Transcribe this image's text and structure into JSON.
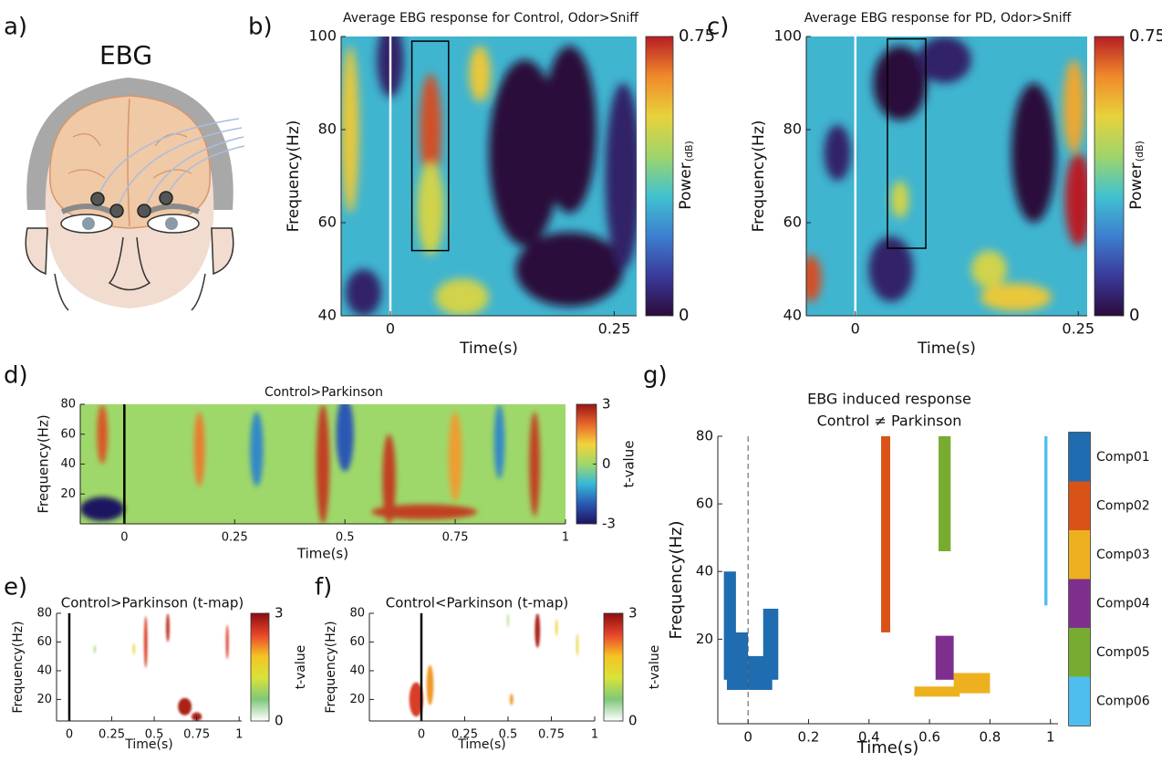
{
  "illustration": {
    "panel": "a)",
    "title": "EBG"
  },
  "chart_data": [
    {
      "type": "heatmap",
      "panel": "b)",
      "title": "Average EBG response for Control, Odor>Sniff",
      "x_label": "Time(s)",
      "y_label": "Frequency(Hz)",
      "xlim": [
        -0.055,
        0.275
      ],
      "xticks": [
        0,
        0.25
      ],
      "ylim": [
        40,
        100
      ],
      "yticks": [
        40,
        60,
        80,
        100
      ],
      "event_line": {
        "x": 0,
        "color": "#ffffff",
        "dashed": false
      },
      "roi": {
        "x": [
          0.024,
          0.065
        ],
        "y": [
          54,
          99
        ]
      },
      "colorbar": {
        "label": "Power",
        "unit": "(dB)",
        "lim": [
          0,
          0.75
        ],
        "ticks": [
          0,
          0.75
        ]
      },
      "colormap": [
        "#2a0b3b",
        "#3a3a9a",
        "#3d7fd0",
        "#41c2d0",
        "#9fd46a",
        "#e8d23c",
        "#f08a2a",
        "#b71d26"
      ],
      "base_value": 0.3,
      "blobs": [
        {
          "x": 0.045,
          "y": 80,
          "rx": 0.012,
          "ry": 12,
          "value": 0.7
        },
        {
          "x": 0.045,
          "y": 63,
          "rx": 0.015,
          "ry": 10,
          "value": 0.5
        },
        {
          "x": -0.045,
          "y": 80,
          "rx": 0.01,
          "ry": 18,
          "value": 0.55
        },
        {
          "x": 0.15,
          "y": 75,
          "rx": 0.04,
          "ry": 20,
          "value": 0
        },
        {
          "x": 0.2,
          "y": 80,
          "rx": 0.03,
          "ry": 18,
          "value": 0
        },
        {
          "x": 0.2,
          "y": 50,
          "rx": 0.06,
          "ry": 8,
          "value": 0
        },
        {
          "x": 0.0,
          "y": 95,
          "rx": 0.015,
          "ry": 8,
          "value": 0.05
        },
        {
          "x": -0.03,
          "y": 45,
          "rx": 0.02,
          "ry": 5,
          "value": 0.05
        },
        {
          "x": 0.08,
          "y": 44,
          "rx": 0.03,
          "ry": 4,
          "value": 0.5
        },
        {
          "x": 0.26,
          "y": 70,
          "rx": 0.02,
          "ry": 20,
          "value": 0.05
        },
        {
          "x": 0.1,
          "y": 92,
          "rx": 0.012,
          "ry": 6,
          "value": 0.55
        }
      ]
    },
    {
      "type": "heatmap",
      "panel": "c)",
      "title": "Average EBG response for PD, Odor>Sniff",
      "x_label": "Time(s)",
      "y_label": "Frequency(Hz)",
      "xlim": [
        -0.055,
        0.26
      ],
      "xticks": [
        0,
        0.25
      ],
      "ylim": [
        40,
        100
      ],
      "yticks": [
        40,
        60,
        80,
        100
      ],
      "event_line": {
        "x": 0,
        "color": "#ffffff",
        "dashed": false
      },
      "roi": {
        "x": [
          0.036,
          0.079
        ],
        "y": [
          54.5,
          99.5
        ]
      },
      "colorbar": {
        "label": "Power",
        "unit": "(dB)",
        "lim": [
          0,
          0.75
        ],
        "ticks": [
          0,
          0.75
        ]
      },
      "colormap": [
        "#2a0b3b",
        "#3a3a9a",
        "#3d7fd0",
        "#41c2d0",
        "#9fd46a",
        "#e8d23c",
        "#f08a2a",
        "#b71d26"
      ],
      "base_value": 0.3,
      "blobs": [
        {
          "x": 0.25,
          "y": 65,
          "rx": 0.015,
          "ry": 10,
          "value": 0.75
        },
        {
          "x": 0.245,
          "y": 85,
          "rx": 0.012,
          "ry": 10,
          "value": 0.6
        },
        {
          "x": -0.05,
          "y": 48,
          "rx": 0.012,
          "ry": 5,
          "value": 0.7
        },
        {
          "x": 0.2,
          "y": 75,
          "rx": 0.025,
          "ry": 15,
          "value": 0
        },
        {
          "x": 0.05,
          "y": 90,
          "rx": 0.03,
          "ry": 8,
          "value": 0
        },
        {
          "x": 0.04,
          "y": 50,
          "rx": 0.025,
          "ry": 7,
          "value": 0.05
        },
        {
          "x": -0.02,
          "y": 75,
          "rx": 0.015,
          "ry": 6,
          "value": 0.05
        },
        {
          "x": 0.15,
          "y": 50,
          "rx": 0.02,
          "ry": 4,
          "value": 0.5
        },
        {
          "x": 0.18,
          "y": 44,
          "rx": 0.04,
          "ry": 3,
          "value": 0.55
        },
        {
          "x": 0.1,
          "y": 95,
          "rx": 0.03,
          "ry": 5,
          "value": 0.05
        },
        {
          "x": 0.05,
          "y": 65,
          "rx": 0.01,
          "ry": 4,
          "value": 0.5
        }
      ]
    },
    {
      "type": "heatmap",
      "panel": "d)",
      "title": "Control>Parkinson",
      "x_label": "Time(s)",
      "y_label": "Frequency(Hz)",
      "xlim": [
        -0.1,
        1
      ],
      "xticks": [
        0,
        0.25,
        0.5,
        0.75,
        1
      ],
      "ylim": [
        0,
        80
      ],
      "yticks": [
        20,
        40,
        60,
        80
      ],
      "event_line": {
        "x": 0,
        "color": "#000000",
        "dashed": false
      },
      "colorbar": {
        "label": "t-value",
        "lim": [
          -3,
          3
        ],
        "ticks": [
          -3,
          0,
          3
        ]
      },
      "colormap": [
        "#1e1360",
        "#2a58b4",
        "#36b8d8",
        "#9fd86a",
        "#f3d23a",
        "#e8672b",
        "#9a1616"
      ],
      "base_value": 0,
      "blobs": [
        {
          "x": 0.45,
          "y": 40,
          "rx": 0.015,
          "ry": 40,
          "value": 2.5
        },
        {
          "x": 0.6,
          "y": 30,
          "rx": 0.015,
          "ry": 30,
          "value": 2.5
        },
        {
          "x": 0.68,
          "y": 8,
          "rx": 0.12,
          "ry": 5,
          "value": 2.5
        },
        {
          "x": -0.05,
          "y": 10,
          "rx": 0.05,
          "ry": 8,
          "value": -3
        },
        {
          "x": 0.5,
          "y": 60,
          "rx": 0.02,
          "ry": 25,
          "value": -2
        },
        {
          "x": 0.93,
          "y": 40,
          "rx": 0.012,
          "ry": 35,
          "value": 2.5
        },
        {
          "x": -0.05,
          "y": 60,
          "rx": 0.012,
          "ry": 20,
          "value": 2.2
        },
        {
          "x": 0.3,
          "y": 50,
          "rx": 0.015,
          "ry": 25,
          "value": -1.5
        },
        {
          "x": 0.75,
          "y": 45,
          "rx": 0.015,
          "ry": 30,
          "value": 1.5
        },
        {
          "x": 0.85,
          "y": 55,
          "rx": 0.012,
          "ry": 25,
          "value": -1.5
        },
        {
          "x": 0.17,
          "y": 50,
          "rx": 0.012,
          "ry": 25,
          "value": 1.8
        }
      ]
    },
    {
      "type": "heatmap",
      "panel": "e)",
      "title": "Control>Parkinson (t-map)",
      "x_label": "Time(s)",
      "y_label": "Frequency(Hz)",
      "xlim": [
        -0.075,
        1.015
      ],
      "xticks": [
        0,
        0.25,
        0.5,
        0.75,
        1
      ],
      "ylim": [
        5,
        80
      ],
      "yticks": [
        20,
        40,
        60,
        80
      ],
      "event_line": {
        "x": 0,
        "color": "#000000",
        "dashed": false
      },
      "colorbar": {
        "label": "t-value",
        "lim": [
          0,
          3
        ],
        "ticks": [
          0,
          3
        ]
      },
      "colormap": [
        "#ffffff",
        "#80c87a",
        "#d8e33a",
        "#f6c325",
        "#e8452b",
        "#8b0e10"
      ],
      "base_value": 0,
      "blobs": [
        {
          "x": 0.45,
          "y": 60,
          "rx": 0.01,
          "ry": 18,
          "value": 2.5
        },
        {
          "x": 0.58,
          "y": 70,
          "rx": 0.01,
          "ry": 10,
          "value": 2.7
        },
        {
          "x": 0.68,
          "y": 15,
          "rx": 0.04,
          "ry": 6,
          "value": 2.8
        },
        {
          "x": 0.75,
          "y": 8,
          "rx": 0.03,
          "ry": 3,
          "value": 2.8
        },
        {
          "x": 0.93,
          "y": 60,
          "rx": 0.008,
          "ry": 12,
          "value": 2.5
        },
        {
          "x": 0.15,
          "y": 55,
          "rx": 0.005,
          "ry": 3,
          "value": 0.8
        },
        {
          "x": 0.38,
          "y": 55,
          "rx": 0.006,
          "ry": 4,
          "value": 1.6
        }
      ]
    },
    {
      "type": "heatmap",
      "panel": "f)",
      "title": "Control<Parkinson (t-map)",
      "x_label": "Time(s)",
      "y_label": "Frequency(Hz)",
      "xlim": [
        -0.3,
        1
      ],
      "xticks": [
        0,
        0.25,
        0.5,
        0.75,
        1
      ],
      "ylim": [
        5,
        80
      ],
      "yticks": [
        20,
        40,
        60,
        80
      ],
      "event_line": {
        "x": 0,
        "color": "#000000",
        "dashed": false
      },
      "colorbar": {
        "label": "t-value",
        "lim": [
          0,
          3
        ],
        "ticks": [
          0,
          3
        ]
      },
      "colormap": [
        "#ffffff",
        "#80c87a",
        "#d8e33a",
        "#f6c325",
        "#e8452b",
        "#8b0e10"
      ],
      "base_value": 0,
      "blobs": [
        {
          "x": 0.67,
          "y": 68,
          "rx": 0.015,
          "ry": 12,
          "value": 2.8
        },
        {
          "x": -0.03,
          "y": 20,
          "rx": 0.04,
          "ry": 12,
          "value": 2.5
        },
        {
          "x": 0.05,
          "y": 30,
          "rx": 0.02,
          "ry": 14,
          "value": 2
        },
        {
          "x": 0.52,
          "y": 20,
          "rx": 0.01,
          "ry": 4,
          "value": 2
        },
        {
          "x": 0.5,
          "y": 75,
          "rx": 0.004,
          "ry": 5,
          "value": 0.8
        },
        {
          "x": 0.78,
          "y": 70,
          "rx": 0.006,
          "ry": 6,
          "value": 1.6
        },
        {
          "x": 0.9,
          "y": 58,
          "rx": 0.006,
          "ry": 8,
          "value": 1.5
        }
      ]
    },
    {
      "type": "regions",
      "panel": "g)",
      "title": "EBG induced response",
      "subtitle": "Control ≠ Parkinson",
      "x_label": "Time(s)",
      "y_label": "Frequency(Hz)",
      "xlim": [
        -0.1,
        1.025
      ],
      "xticks": [
        0,
        0.2,
        0.4,
        0.6,
        0.8,
        1
      ],
      "ylim": [
        -5,
        80
      ],
      "yticks": [
        20,
        40,
        60,
        80
      ],
      "event_line": {
        "x": 0,
        "color": "#555555",
        "dashed": true
      },
      "series": [
        {
          "name": "Comp01",
          "color": "#1f6cb0",
          "regions": [
            [
              -0.08,
              -0.04,
              8,
              40
            ],
            [
              -0.07,
              0.0,
              5,
              22
            ],
            [
              0.0,
              0.08,
              5,
              15
            ],
            [
              0.05,
              0.1,
              8,
              29
            ]
          ]
        },
        {
          "name": "Comp02",
          "color": "#d95319",
          "regions": [
            [
              0.44,
              0.47,
              22,
              80
            ]
          ]
        },
        {
          "name": "Comp03",
          "color": "#edb120",
          "regions": [
            [
              0.55,
              0.7,
              3,
              6
            ],
            [
              0.68,
              0.8,
              4,
              10
            ]
          ]
        },
        {
          "name": "Comp04",
          "color": "#7e2f8e",
          "regions": [
            [
              0.62,
              0.68,
              8,
              21
            ]
          ]
        },
        {
          "name": "Comp05",
          "color": "#77ac30",
          "regions": [
            [
              0.63,
              0.67,
              46,
              80
            ]
          ]
        },
        {
          "name": "Comp06",
          "color": "#4dbeee",
          "regions": [
            [
              0.98,
              0.99,
              30,
              80
            ]
          ]
        }
      ]
    }
  ]
}
